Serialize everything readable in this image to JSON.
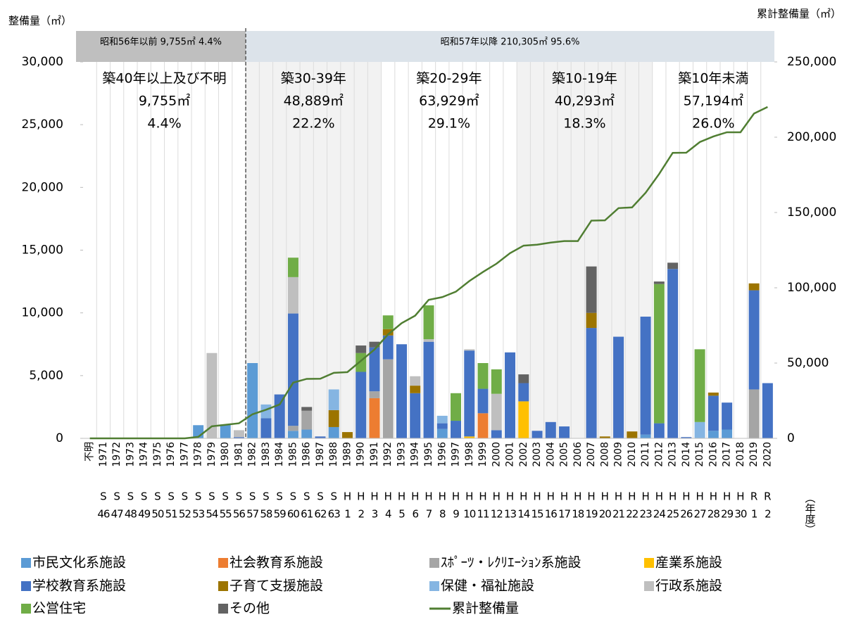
{
  "chart_data": {
    "type": "bar",
    "stacked": true,
    "y_label": "整備量（㎡）",
    "y2_label": "累計整備量（㎡）",
    "x_label": "（年度）",
    "bands": [
      "昭和56年以前  9,755㎡  4.4%",
      "昭和57年以降  210,305㎡  95.6%"
    ],
    "periods": [
      {
        "label": "築40年以上及び不明",
        "area": "9,755㎡",
        "share": "4.4%"
      },
      {
        "label": "築30-39年",
        "area": "48,889㎡",
        "share": "22.2%"
      },
      {
        "label": "築20-29年",
        "area": "63,929㎡",
        "share": "29.1%"
      },
      {
        "label": "築10-19年",
        "area": "40,293㎡",
        "share": "18.3%"
      },
      {
        "label": "築10年未満",
        "area": "57,194㎡",
        "share": "26.0%"
      }
    ],
    "categories": [
      "不明",
      "1971",
      "1972",
      "1973",
      "1974",
      "1975",
      "1976",
      "1977",
      "1978",
      "1979",
      "1980",
      "1981",
      "1982",
      "1983",
      "1984",
      "1985",
      "1986",
      "1987",
      "1988",
      "1989",
      "1990",
      "1991",
      "1992",
      "1993",
      "1994",
      "1995",
      "1996",
      "1997",
      "1998",
      "1999",
      "2000",
      "2001",
      "2002",
      "2003",
      "2004",
      "2005",
      "2006",
      "2007",
      "2008",
      "2009",
      "2010",
      "2011",
      "2012",
      "2013",
      "2014",
      "2015",
      "2016",
      "2017",
      "2018",
      "2019",
      "2020"
    ],
    "era_labels": [
      null,
      "S",
      "S",
      "S",
      "S",
      "S",
      "S",
      "S",
      "S",
      "S",
      "S",
      "S",
      "S",
      "S",
      "S",
      "S",
      "S",
      "S",
      "S",
      "H",
      "H",
      "H",
      "H",
      "H",
      "H",
      "H",
      "H",
      "H",
      "H",
      "H",
      "H",
      "H",
      "H",
      "H",
      "H",
      "H",
      "H",
      "H",
      "H",
      "H",
      "H",
      "H",
      "H",
      "H",
      "H",
      "H",
      "H",
      "H",
      "H",
      "R",
      "R"
    ],
    "era_numbers": [
      null,
      46,
      47,
      48,
      49,
      50,
      51,
      52,
      53,
      54,
      55,
      56,
      57,
      58,
      59,
      60,
      61,
      62,
      63,
      1,
      2,
      3,
      4,
      5,
      6,
      7,
      8,
      9,
      10,
      11,
      12,
      13,
      14,
      15,
      16,
      17,
      18,
      19,
      20,
      21,
      22,
      23,
      24,
      25,
      26,
      27,
      28,
      29,
      30,
      1,
      2
    ],
    "series": [
      {
        "name": "市民文化系施設",
        "color": "#5b9bd5",
        "values": [
          0,
          0,
          0,
          0,
          0,
          0,
          0,
          0,
          1050,
          0,
          1100,
          0,
          6000,
          0,
          0,
          600,
          700,
          0,
          900,
          0,
          0,
          0,
          0,
          0,
          0,
          0,
          750,
          0,
          0,
          0,
          0,
          0,
          0,
          0,
          0,
          0,
          0,
          0,
          0,
          0,
          0,
          300,
          0,
          0,
          0,
          0,
          600,
          700,
          0,
          0,
          0
        ]
      },
      {
        "name": "社会教育系施設",
        "color": "#ed7d31",
        "values": [
          0,
          0,
          0,
          0,
          0,
          0,
          0,
          0,
          0,
          0,
          0,
          0,
          0,
          0,
          0,
          0,
          0,
          0,
          0,
          0,
          0,
          3200,
          0,
          0,
          0,
          0,
          0,
          0,
          0,
          2000,
          0,
          0,
          0,
          0,
          0,
          0,
          0,
          0,
          0,
          0,
          0,
          0,
          0,
          0,
          0,
          0,
          0,
          0,
          0,
          0,
          0
        ]
      },
      {
        "name": "ｽﾎﾟｰﾂ・ﾚｸﾘｴｰｼｮﾝ系施設",
        "color": "#a5a5a5",
        "values": [
          0,
          0,
          0,
          0,
          0,
          0,
          0,
          0,
          0,
          0,
          0,
          0,
          0,
          0,
          0,
          400,
          1500,
          0,
          0,
          0,
          0,
          550,
          6300,
          0,
          0,
          0,
          0,
          0,
          0,
          0,
          0,
          0,
          0,
          0,
          0,
          0,
          0,
          0,
          0,
          0,
          0,
          0,
          0,
          0,
          0,
          0,
          0,
          0,
          0,
          3900,
          0
        ]
      },
      {
        "name": "産業系施設",
        "color": "#ffc000",
        "values": [
          0,
          0,
          0,
          0,
          0,
          0,
          0,
          0,
          0,
          0,
          0,
          0,
          0,
          0,
          0,
          0,
          0,
          0,
          0,
          0,
          0,
          0,
          0,
          0,
          0,
          0,
          0,
          0,
          150,
          0,
          0,
          0,
          2950,
          0,
          0,
          0,
          0,
          0,
          0,
          0,
          0,
          0,
          0,
          0,
          0,
          0,
          0,
          0,
          0,
          0,
          0
        ]
      },
      {
        "name": "学校教育系施設",
        "color": "#4472c4",
        "values": [
          0,
          0,
          0,
          0,
          0,
          0,
          0,
          0,
          0,
          0,
          0,
          100,
          0,
          1600,
          3500,
          8950,
          0,
          150,
          0,
          0,
          5300,
          3500,
          1900,
          7500,
          3600,
          7700,
          450,
          1400,
          6850,
          1950,
          650,
          6850,
          1450,
          600,
          1300,
          950,
          0,
          8800,
          0,
          8100,
          0,
          9400,
          1200,
          13500,
          100,
          0,
          2800,
          2150,
          0,
          7900,
          4400
        ]
      },
      {
        "name": "子育て支援施設",
        "color": "#9c7400",
        "values": [
          0,
          0,
          0,
          0,
          0,
          0,
          0,
          0,
          0,
          0,
          0,
          0,
          0,
          0,
          0,
          0,
          0,
          0,
          1350,
          500,
          0,
          0,
          500,
          0,
          600,
          0,
          0,
          0,
          0,
          0,
          0,
          0,
          0,
          0,
          0,
          0,
          0,
          1200,
          150,
          0,
          550,
          0,
          0,
          0,
          0,
          0,
          250,
          0,
          0,
          550,
          0
        ]
      },
      {
        "name": "保健・福祉施設",
        "color": "#85b5e2",
        "values": [
          0,
          0,
          0,
          0,
          0,
          0,
          0,
          0,
          0,
          0,
          0,
          0,
          0,
          1100,
          0,
          0,
          0,
          0,
          1650,
          0,
          0,
          0,
          0,
          0,
          0,
          0,
          600,
          0,
          0,
          0,
          0,
          0,
          0,
          0,
          0,
          0,
          0,
          0,
          0,
          0,
          0,
          0,
          0,
          0,
          0,
          1300,
          0,
          0,
          0,
          0,
          0
        ]
      },
      {
        "name": "行政系施設",
        "color": "#bfbfbf",
        "values": [
          0,
          0,
          0,
          0,
          0,
          0,
          0,
          0,
          0,
          6800,
          0,
          550,
          0,
          0,
          0,
          2900,
          0,
          0,
          0,
          0,
          0,
          0,
          0,
          0,
          750,
          200,
          0,
          0,
          100,
          0,
          2900,
          0,
          0,
          0,
          0,
          0,
          0,
          0,
          0,
          0,
          0,
          0,
          0,
          0,
          0,
          0,
          0,
          0,
          0,
          0,
          0
        ]
      },
      {
        "name": "公営住宅",
        "color": "#70ad47",
        "values": [
          0,
          0,
          0,
          0,
          0,
          0,
          0,
          0,
          0,
          0,
          0,
          0,
          0,
          0,
          0,
          1550,
          0,
          0,
          0,
          0,
          1500,
          0,
          1100,
          0,
          0,
          2700,
          0,
          2200,
          0,
          2050,
          1950,
          0,
          0,
          0,
          0,
          0,
          0,
          0,
          0,
          0,
          0,
          0,
          11100,
          0,
          0,
          5800,
          0,
          0,
          0,
          0,
          0
        ]
      },
      {
        "name": "その他",
        "color": "#636363",
        "values": [
          0,
          0,
          0,
          0,
          0,
          0,
          0,
          0,
          0,
          0,
          0,
          0,
          0,
          0,
          0,
          0,
          300,
          0,
          0,
          0,
          600,
          450,
          0,
          0,
          0,
          0,
          0,
          0,
          0,
          0,
          0,
          0,
          700,
          0,
          0,
          0,
          0,
          3700,
          0,
          0,
          0,
          0,
          200,
          500,
          0,
          0,
          0,
          0,
          0,
          0,
          0
        ]
      },
      {
        "name": "累計整備量",
        "type": "line",
        "axis": "y2",
        "color": "#507e32",
        "values": [
          0,
          0,
          0,
          0,
          0,
          0,
          0,
          0,
          1000,
          8000,
          9000,
          10000,
          16000,
          19000,
          22500,
          37000,
          39500,
          39600,
          43500,
          44000,
          51500,
          59000,
          69000,
          76500,
          81500,
          92000,
          93800,
          97400,
          104500,
          110500,
          116000,
          123000,
          128000,
          128600,
          130000,
          131000,
          131000,
          144600,
          144800,
          152900,
          153400,
          163100,
          175600,
          189600,
          189700,
          196800,
          200500,
          203300,
          203300,
          215700,
          220100
        ]
      }
    ],
    "ylim": [
      0,
      30000
    ],
    "yticks": [
      0,
      {
        "value": 5000,
        "label": "5,000"
      },
      {
        "value": 10000,
        "label": "10,000"
      },
      {
        "value": 15000,
        "label": "15,000"
      },
      {
        "value": 20000,
        "label": "20,000"
      },
      {
        "value": 25000,
        "label": "25,000"
      },
      {
        "value": 30000,
        "label": "30,000"
      }
    ],
    "y2lim": [
      0,
      250000
    ],
    "y2ticks": [
      0,
      {
        "value": 50000,
        "label": "50,000"
      },
      {
        "value": 100000,
        "label": "100,000"
      },
      {
        "value": 150000,
        "label": "150,000"
      },
      {
        "value": 200000,
        "label": "200,000"
      },
      {
        "value": 250000,
        "label": "250,000"
      }
    ]
  }
}
